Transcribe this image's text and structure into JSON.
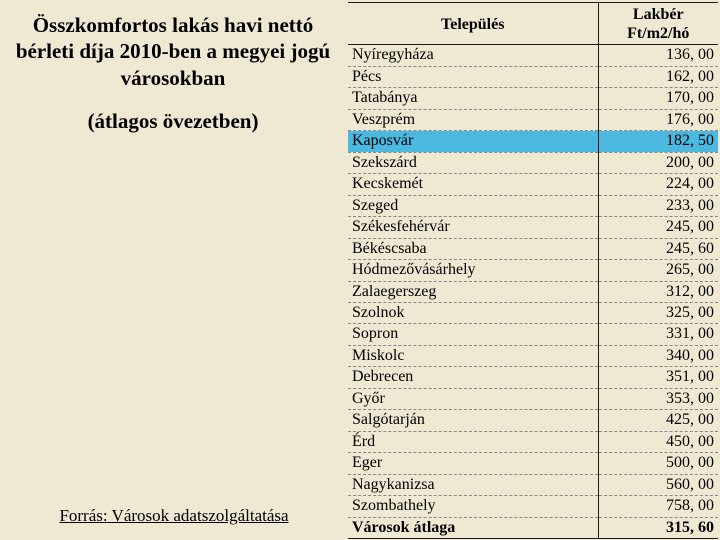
{
  "left": {
    "title_l1": "Összkomfortos lakás havi nettó",
    "title_l2": "bérleti díja 2010-ben a megyei jogú",
    "title_l3": "városokban",
    "subtitle": "(átlagos övezetben)",
    "source": "Forrás: Városok adatszolgáltatása"
  },
  "table": {
    "headers": {
      "c1": "Település",
      "c2_l1": "Lakbér",
      "c2_l2": "Ft/m2/hó"
    },
    "highlight_index": 4,
    "rows": [
      {
        "city": "Nyíregyháza",
        "val": "136, 00"
      },
      {
        "city": "Pécs",
        "val": "162, 00"
      },
      {
        "city": "Tatabánya",
        "val": "170, 00"
      },
      {
        "city": "Veszprém",
        "val": "176, 00"
      },
      {
        "city": "Kaposvár",
        "val": "182, 50"
      },
      {
        "city": "Szekszárd",
        "val": "200, 00"
      },
      {
        "city": "Kecskemét",
        "val": "224, 00"
      },
      {
        "city": "Szeged",
        "val": "233, 00"
      },
      {
        "city": "Székesfehérvár",
        "val": "245, 00"
      },
      {
        "city": "Békéscsaba",
        "val": "245, 60"
      },
      {
        "city": "Hódmezővásárhely",
        "val": "265, 00"
      },
      {
        "city": "Zalaegerszeg",
        "val": "312, 00"
      },
      {
        "city": "Szolnok",
        "val": "325, 00"
      },
      {
        "city": "Sopron",
        "val": "331, 00"
      },
      {
        "city": "Miskolc",
        "val": "340, 00"
      },
      {
        "city": "Debrecen",
        "val": "351, 00"
      },
      {
        "city": "Győr",
        "val": "353, 00"
      },
      {
        "city": "Salgótarján",
        "val": "425, 00"
      },
      {
        "city": "Érd",
        "val": "450, 00"
      },
      {
        "city": "Eger",
        "val": "500, 00"
      },
      {
        "city": "Nagykanizsa",
        "val": "560, 00"
      },
      {
        "city": "Szombathely",
        "val": "758, 00"
      }
    ],
    "total": {
      "city": "Városok átlaga",
      "val": "315, 60"
    }
  },
  "colors": {
    "background": "#efe8d2",
    "highlight": "#4bb8df",
    "border": "#1a1a1a",
    "dash": "#888888",
    "text": "#000000"
  }
}
